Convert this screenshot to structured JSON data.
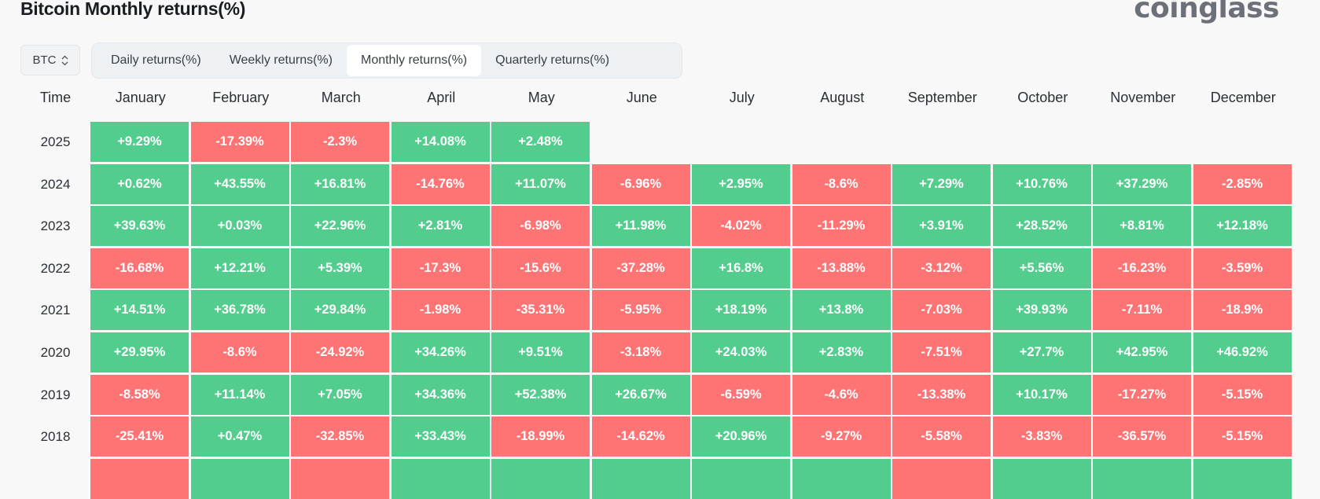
{
  "title": "Bitcoin Monthly returns(%)",
  "logo": "coinglass",
  "asset_select": {
    "value": "BTC"
  },
  "tabs": [
    {
      "label": "Daily returns(%)",
      "active": false
    },
    {
      "label": "Weekly returns(%)",
      "active": false
    },
    {
      "label": "Monthly returns(%)",
      "active": true
    },
    {
      "label": "Quarterly returns(%)",
      "active": false
    }
  ],
  "colors": {
    "positive": "#53cd8e",
    "negative": "#fe7475"
  },
  "columns": [
    "Time",
    "January",
    "February",
    "March",
    "April",
    "May",
    "June",
    "July",
    "August",
    "September",
    "October",
    "November",
    "December"
  ],
  "rows": [
    {
      "year": "2025",
      "values": [
        "+9.29%",
        "-17.39%",
        "-2.3%",
        "+14.08%",
        "+2.48%",
        "",
        "",
        "",
        "",
        "",
        "",
        ""
      ]
    },
    {
      "year": "2024",
      "values": [
        "+0.62%",
        "+43.55%",
        "+16.81%",
        "-14.76%",
        "+11.07%",
        "-6.96%",
        "+2.95%",
        "-8.6%",
        "+7.29%",
        "+10.76%",
        "+37.29%",
        "-2.85%"
      ]
    },
    {
      "year": "2023",
      "values": [
        "+39.63%",
        "+0.03%",
        "+22.96%",
        "+2.81%",
        "-6.98%",
        "+11.98%",
        "-4.02%",
        "-11.29%",
        "+3.91%",
        "+28.52%",
        "+8.81%",
        "+12.18%"
      ]
    },
    {
      "year": "2022",
      "values": [
        "-16.68%",
        "+12.21%",
        "+5.39%",
        "-17.3%",
        "-15.6%",
        "-37.28%",
        "+16.8%",
        "-13.88%",
        "-3.12%",
        "+5.56%",
        "-16.23%",
        "-3.59%"
      ]
    },
    {
      "year": "2021",
      "values": [
        "+14.51%",
        "+36.78%",
        "+29.84%",
        "-1.98%",
        "-35.31%",
        "-5.95%",
        "+18.19%",
        "+13.8%",
        "-7.03%",
        "+39.93%",
        "-7.11%",
        "-18.9%"
      ]
    },
    {
      "year": "2020",
      "values": [
        "+29.95%",
        "-8.6%",
        "-24.92%",
        "+34.26%",
        "+9.51%",
        "-3.18%",
        "+24.03%",
        "+2.83%",
        "-7.51%",
        "+27.7%",
        "+42.95%",
        "+46.92%"
      ]
    },
    {
      "year": "2019",
      "values": [
        "-8.58%",
        "+11.14%",
        "+7.05%",
        "+34.36%",
        "+52.38%",
        "+26.67%",
        "-6.59%",
        "-4.6%",
        "-13.38%",
        "+10.17%",
        "-17.27%",
        "-5.15%"
      ]
    },
    {
      "year": "2018",
      "values": [
        "-25.41%",
        "+0.47%",
        "-32.85%",
        "+33.43%",
        "-18.99%",
        "-14.62%",
        "+20.96%",
        "-9.27%",
        "-5.58%",
        "-3.83%",
        "-36.57%",
        "-5.15%"
      ]
    }
  ],
  "partial_row_signs": [
    "-",
    "+",
    "-",
    "+",
    "+",
    "+",
    "+",
    "+",
    "-",
    "+",
    "+",
    "+"
  ]
}
